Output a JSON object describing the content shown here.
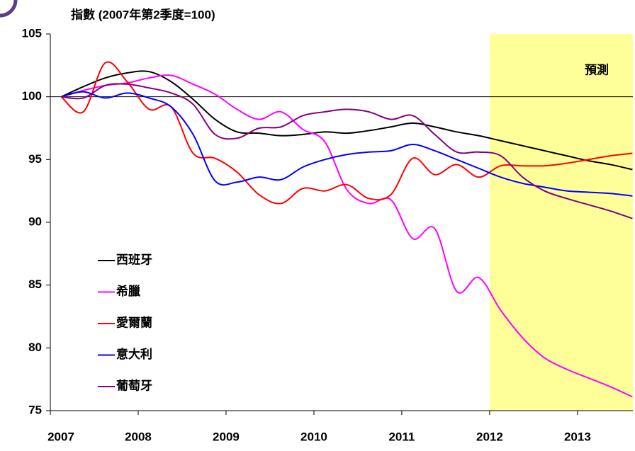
{
  "chart_data": {
    "type": "line",
    "title": "指數 (2007年第2季度=100)",
    "x": [
      2007.125,
      2007.375,
      2007.625,
      2007.875,
      2008.125,
      2008.375,
      2008.625,
      2008.875,
      2009.125,
      2009.375,
      2009.625,
      2009.875,
      2010.125,
      2010.375,
      2010.625,
      2010.875,
      2011.125,
      2011.375,
      2011.625,
      2011.875,
      2012.125,
      2012.375,
      2012.625,
      2012.875,
      2013.125,
      2013.375,
      2013.625
    ],
    "series": [
      {
        "name": "西班牙",
        "color": "#000000",
        "values": [
          100,
          100.8,
          101.5,
          101.9,
          102,
          101.2,
          99.8,
          98.2,
          97.2,
          97.1,
          96.9,
          97,
          97.2,
          97.1,
          97.3,
          97.6,
          97.9,
          97.6,
          97.2,
          96.9,
          96.5,
          96.1,
          95.7,
          95.3,
          94.9,
          94.6,
          94.2
        ]
      },
      {
        "name": "希臘",
        "color": "#ff00ff",
        "values": [
          100,
          100.5,
          100.9,
          101.1,
          101.5,
          101.7,
          101,
          100.2,
          99,
          98.2,
          98.8,
          97.4,
          96.4,
          92.6,
          91.5,
          91.8,
          88.7,
          89.5,
          84.5,
          85.6,
          83,
          80.8,
          79.2,
          78.3,
          77.6,
          76.9,
          76.1
        ]
      },
      {
        "name": "愛爾蘭",
        "color": "#ff0000",
        "values": [
          100,
          98.8,
          102.7,
          101.2,
          99,
          99.2,
          95.5,
          95.1,
          94,
          92.2,
          91.5,
          92.7,
          92.5,
          93,
          91.9,
          92.2,
          95.1,
          93.8,
          94.6,
          93.6,
          94.5,
          94.5,
          94.5,
          94.7,
          95,
          95.3,
          95.5
        ]
      },
      {
        "name": "意大利",
        "color": "#0000ff",
        "values": [
          100,
          100.4,
          99.9,
          100.3,
          99.9,
          99.2,
          97,
          93.3,
          93.2,
          93.6,
          93.4,
          94.4,
          95,
          95.4,
          95.6,
          95.7,
          96.2,
          95.7,
          95,
          94.3,
          93.6,
          93.1,
          92.8,
          92.5,
          92.4,
          92.3,
          92.1
        ]
      },
      {
        "name": "葡萄牙",
        "color": "#800080",
        "values": [
          100,
          99.9,
          100.9,
          101,
          100.7,
          100.3,
          99.4,
          97,
          96.7,
          97.5,
          97.6,
          98.5,
          98.8,
          99,
          98.8,
          98.2,
          98.5,
          97,
          95.6,
          95.6,
          95.3,
          93.6,
          92.5,
          91.9,
          91.4,
          90.9,
          90.3
        ]
      }
    ],
    "xlim": [
      2007,
      2013.63
    ],
    "xticks": [
      2007,
      2008,
      2009,
      2010,
      2011,
      2012,
      2013
    ],
    "ylim": [
      75,
      105
    ],
    "yticks": [
      75,
      80,
      85,
      90,
      95,
      100,
      105
    ],
    "reference_line": 100,
    "forecast": {
      "label": "預測",
      "start": 2012,
      "color": "#ffff99"
    }
  }
}
